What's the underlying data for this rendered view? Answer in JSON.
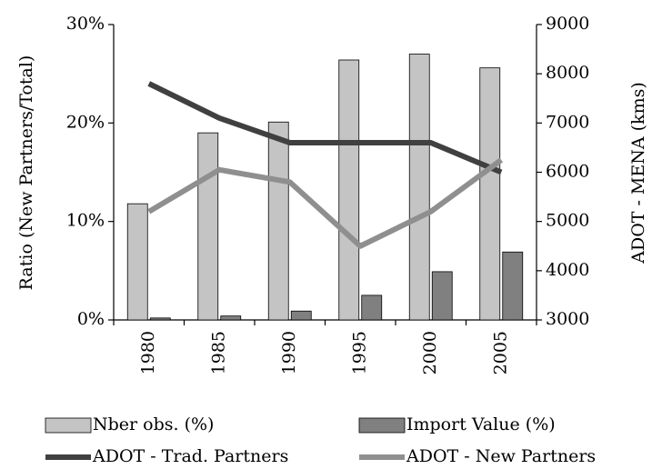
{
  "chart_data": {
    "type": "bar-line",
    "ylabel": "Ratio (New Partners/Total)",
    "y2label": "ADOT - MENA (kms)",
    "categories": [
      "1980",
      "1985",
      "1990",
      "1995",
      "2000",
      "2005"
    ],
    "series": [
      {
        "name": "Nber obs. (%)",
        "type": "bar",
        "color": "#c4c4c4",
        "values": [
          11.8,
          19.0,
          20.1,
          26.4,
          27.0,
          25.6
        ]
      },
      {
        "name": "Import Value (%)",
        "type": "bar",
        "color": "#808080",
        "values": [
          0.2,
          0.4,
          0.9,
          2.5,
          4.9,
          6.9
        ]
      },
      {
        "name": "ADOT - Trad. Partners",
        "type": "line",
        "axis": "y2",
        "color": "#404040",
        "values": [
          7800,
          7100,
          6600,
          6600,
          6600,
          6000
        ]
      },
      {
        "name": "ADOT - New Partners",
        "type": "line",
        "axis": "y2",
        "color": "#8f8f8f",
        "values": [
          5200,
          6050,
          5800,
          4500,
          5200,
          6250
        ]
      }
    ],
    "ylim": [
      0,
      30
    ],
    "yticks": [
      {
        "value": 0,
        "label": "0%"
      },
      {
        "value": 10,
        "label": "10%"
      },
      {
        "value": 20,
        "label": "20%"
      },
      {
        "value": 30,
        "label": "30%"
      }
    ],
    "y2lim": [
      3000,
      9000
    ],
    "y2ticks": [
      3000,
      4000,
      5000,
      6000,
      7000,
      8000,
      9000
    ]
  }
}
